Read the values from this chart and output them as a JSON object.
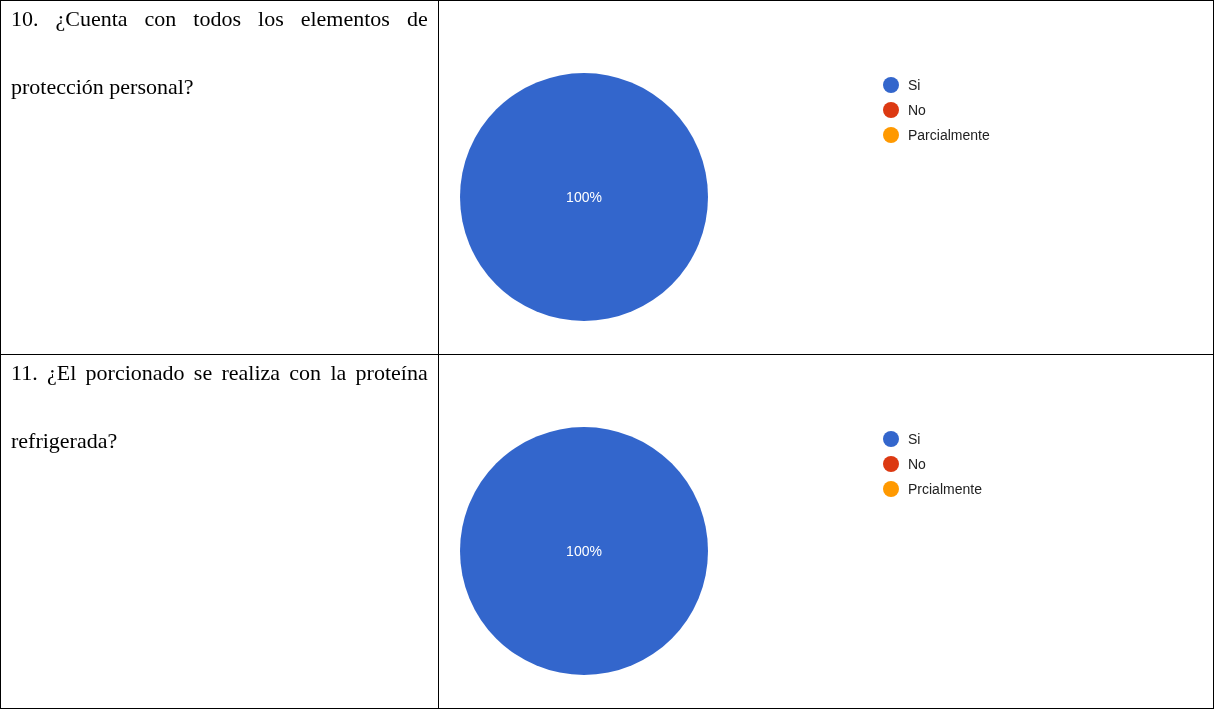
{
  "chart_data": [
    {
      "type": "pie",
      "title": "10. ¿Cuenta con todos los elementos de protección personal?",
      "categories": [
        "Si",
        "No",
        "Parcialmente"
      ],
      "values": [
        100,
        0,
        0
      ],
      "colors": [
        "#3366cc",
        "#dc3912",
        "#ff9900"
      ],
      "value_labels": [
        "100%",
        null,
        null
      ],
      "legend": "right"
    },
    {
      "type": "pie",
      "title": "11. ¿El porcionado se realiza con la proteína refrigerada?",
      "categories": [
        "Si",
        "No",
        "Prcialmente"
      ],
      "values": [
        100,
        0,
        0
      ],
      "colors": [
        "#3366cc",
        "#dc3912",
        "#ff9900"
      ],
      "value_labels": [
        "100%",
        null,
        null
      ],
      "legend": "right"
    }
  ]
}
